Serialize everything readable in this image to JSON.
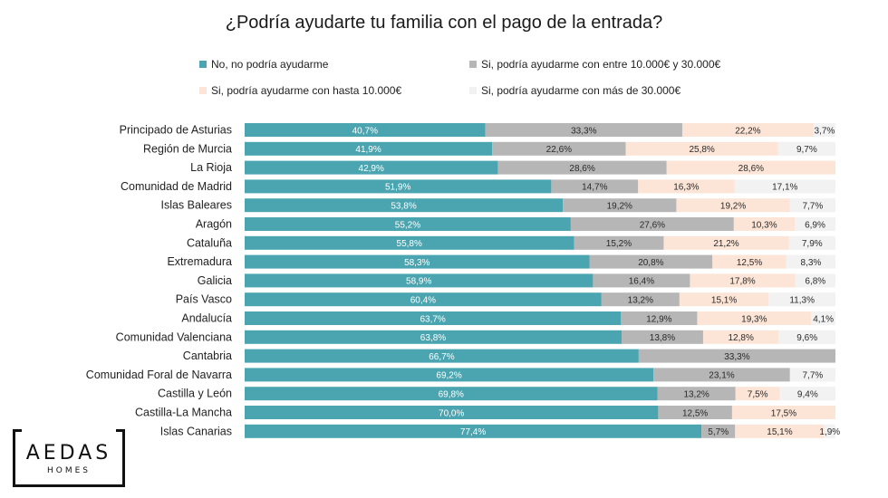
{
  "chart_data": {
    "type": "bar",
    "orientation": "horizontal",
    "stacked": true,
    "title": "¿Podría ayudarte tu familia con el pago de la entrada?",
    "legend_position": "top",
    "xlim": [
      0,
      100
    ],
    "categories": [
      "Principado de Asturias",
      "Región de Murcia",
      "La Rioja",
      "Comunidad de Madrid",
      "Islas Baleares",
      "Aragón",
      "Cataluña",
      "Extremadura",
      "Galicia",
      "País Vasco",
      "Andalucía",
      "Comunidad Valenciana",
      "Cantabria",
      "Comunidad Foral de Navarra",
      "Castilla y León",
      "Castilla-La Mancha",
      "Islas Canarias"
    ],
    "series": [
      {
        "name": "No, no podría ayudarme",
        "color": "#4ba5b0",
        "values": [
          40.7,
          41.9,
          42.9,
          51.9,
          53.8,
          55.2,
          55.8,
          58.3,
          58.9,
          60.4,
          63.7,
          63.8,
          66.7,
          69.2,
          69.8,
          70.0,
          77.4
        ],
        "labels": [
          "40,7%",
          "41,9%",
          "42,9%",
          "51,9%",
          "53,8%",
          "55,2%",
          "55,8%",
          "58,3%",
          "58,9%",
          "60,4%",
          "63,7%",
          "63,8%",
          "66,7%",
          "69,2%",
          "69,8%",
          "70,0%",
          "77,4%"
        ]
      },
      {
        "name": "Si, podría ayudarme con entre 10.000€ y 30.000€",
        "color": "#b6b6b6",
        "values": [
          33.3,
          22.6,
          28.6,
          14.7,
          19.2,
          27.6,
          15.2,
          20.8,
          16.4,
          13.2,
          12.9,
          13.8,
          33.3,
          23.1,
          13.2,
          12.5,
          5.7
        ],
        "labels": [
          "33,3%",
          "22,6%",
          "28,6%",
          "14,7%",
          "19,2%",
          "27,6%",
          "15,2%",
          "20,8%",
          "16,4%",
          "13,2%",
          "12,9%",
          "13,8%",
          "33,3%",
          "23,1%",
          "13,2%",
          "12,5%",
          "5,7%"
        ]
      },
      {
        "name": "Si, podría ayudarme con hasta 10.000€",
        "color": "#fce4d6",
        "values": [
          22.2,
          25.8,
          28.6,
          16.3,
          19.2,
          10.3,
          21.2,
          12.5,
          17.8,
          15.1,
          19.3,
          12.8,
          0,
          0,
          7.5,
          17.5,
          15.1
        ],
        "labels": [
          "22,2%",
          "25,8%",
          "28,6%",
          "16,3%",
          "19,2%",
          "10,3%",
          "21,2%",
          "12,5%",
          "17,8%",
          "15,1%",
          "19,3%",
          "12,8%",
          "",
          "",
          "7,5%",
          "17,5%",
          "15,1%"
        ]
      },
      {
        "name": "Si, podría ayudarme con más de 30.000€",
        "color": "#f2f2f2",
        "values": [
          3.7,
          9.7,
          0,
          17.1,
          7.7,
          6.9,
          7.9,
          8.3,
          6.8,
          11.3,
          4.1,
          9.6,
          0,
          7.7,
          9.4,
          0,
          1.9
        ],
        "labels": [
          "3,7%",
          "9,7%",
          "",
          "17,1%",
          "7,7%",
          "6,9%",
          "7,9%",
          "8,3%",
          "6,8%",
          "11,3%",
          "4,1%",
          "9,6%",
          "",
          "7,7%",
          "9,4%",
          "",
          "1,9%"
        ]
      }
    ]
  },
  "logo": {
    "main": "AEDAS",
    "sub": "HOMES"
  }
}
